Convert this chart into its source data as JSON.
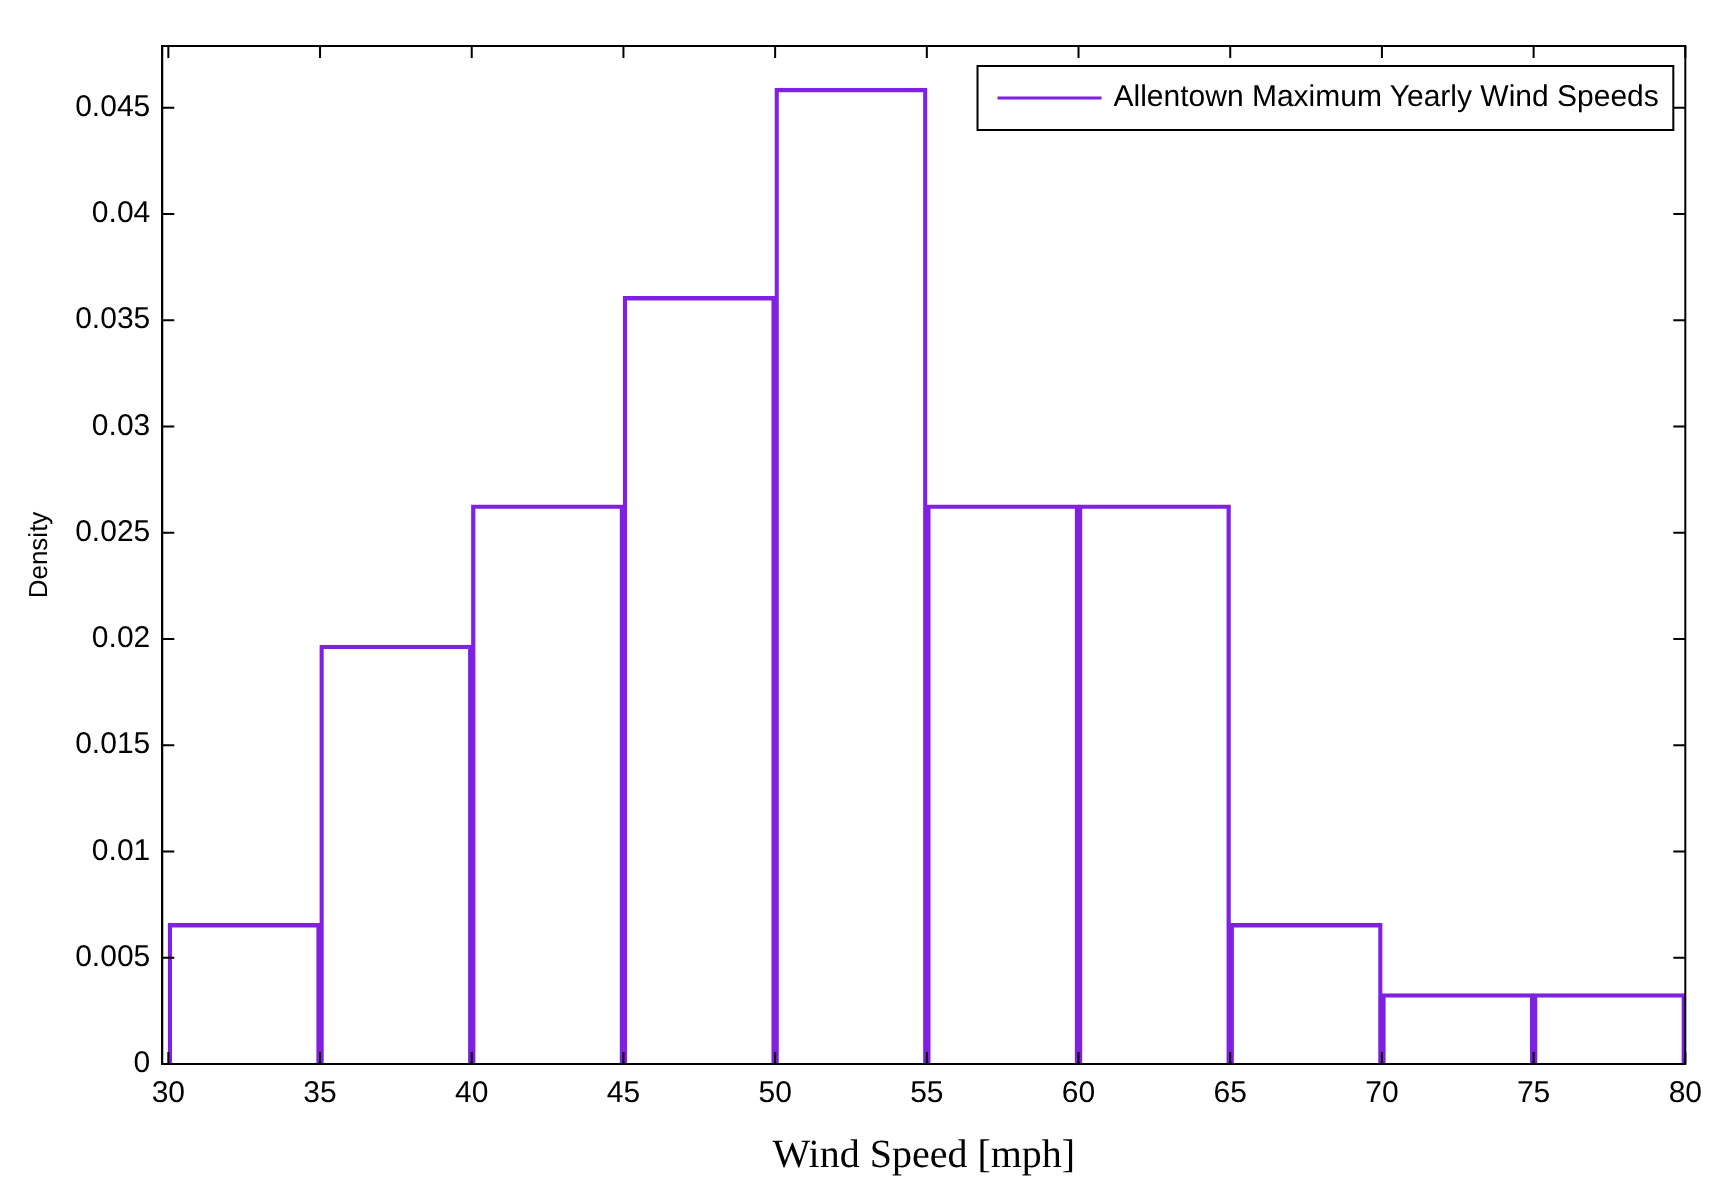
{
  "chart_data": {
    "type": "histogram",
    "xlabel": "Wind Speed [mph]",
    "ylabel": "Density",
    "bins": [
      30,
      35,
      40,
      45,
      50,
      55,
      60,
      65,
      70,
      75,
      80
    ],
    "series": [
      {
        "name": "Allentown Maximum Yearly Wind Speeds",
        "color": "#8020e0",
        "values": [
          0.0066,
          0.0197,
          0.0263,
          0.0361,
          0.0459,
          0.0263,
          0.0263,
          0.0066,
          0.0033,
          0.0033
        ]
      }
    ],
    "xlim": [
      29.8,
      80
    ],
    "ylim": [
      0,
      0.0479
    ],
    "xticks": [
      30,
      35,
      40,
      45,
      50,
      55,
      60,
      65,
      70,
      75,
      80
    ],
    "yticks": [
      0,
      0.005,
      0.01,
      0.015,
      0.02,
      0.025,
      0.03,
      0.035,
      0.04,
      0.045
    ],
    "grid": false,
    "legend": "top right"
  }
}
